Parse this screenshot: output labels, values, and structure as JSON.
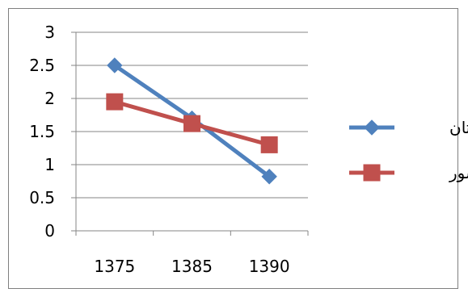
{
  "chart_data": {
    "type": "line",
    "categories": [
      "1375",
      "1385",
      "1390"
    ],
    "series": [
      {
        "name": "استان",
        "values": [
          2.5,
          1.7,
          0.82
        ],
        "color": "#4f81bd",
        "marker": "diamond"
      },
      {
        "name": "کشور",
        "values": [
          1.95,
          1.62,
          1.3
        ],
        "color": "#c0504d",
        "marker": "square"
      }
    ],
    "title": "",
    "xlabel": "",
    "ylabel": "",
    "ylim": [
      0,
      3
    ],
    "yticks": [
      "0",
      "0.5",
      "1",
      "1.5",
      "2",
      "2.5",
      "3"
    ],
    "grid": true,
    "legend": "right"
  }
}
